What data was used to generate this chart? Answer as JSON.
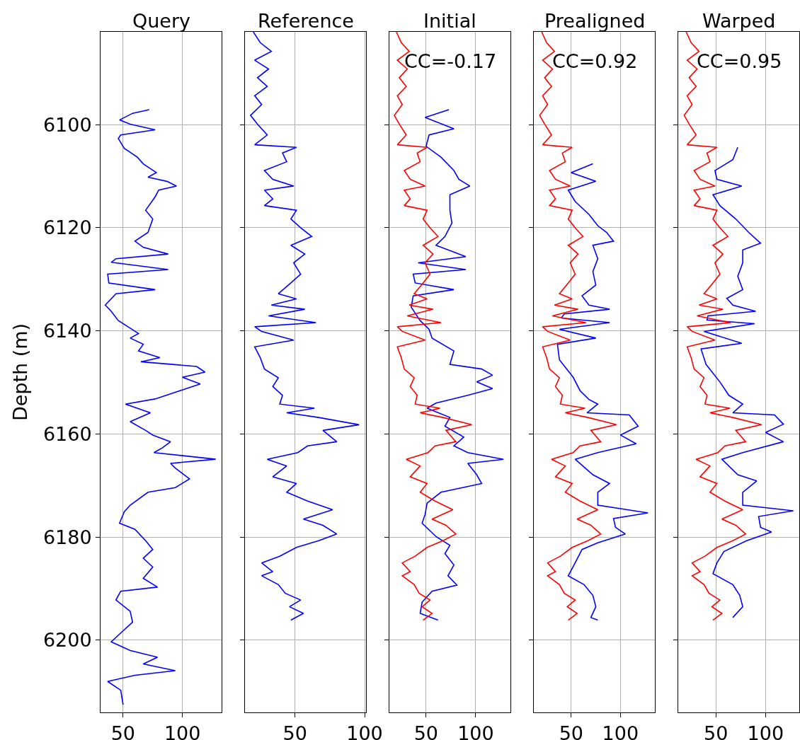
{
  "chart_data": [
    {
      "type": "line",
      "title": "Query",
      "ylabel": "Depth (m)",
      "xlim": [
        31,
        133
      ],
      "xticks": [
        50,
        100
      ],
      "ylim": [
        6214,
        6082
      ],
      "yticks": [
        6100,
        6120,
        6140,
        6160,
        6180,
        6200
      ],
      "grid": true,
      "series": [
        {
          "color": "#0000ff",
          "x": [
            72,
            58,
            47,
            56,
            77,
            48,
            46,
            51,
            62,
            67,
            78,
            71,
            87,
            95,
            80,
            77,
            69,
            75,
            71,
            60,
            67,
            88,
            44,
            40,
            88,
            37,
            38,
            77,
            44,
            35,
            40,
            46,
            63,
            56,
            67,
            63,
            81,
            65,
            112,
            119,
            100,
            115,
            98,
            77,
            52,
            73,
            56,
            69,
            75,
            90,
            83,
            76,
            128,
            90,
            94,
            106,
            94,
            71,
            56,
            51,
            47,
            60,
            69,
            75,
            67,
            75,
            67,
            79,
            48,
            44,
            56,
            58,
            48,
            40,
            56,
            79,
            67,
            94,
            60,
            37,
            48,
            50
          ],
          "values": [
            6097.1,
            6097.8,
            6099.1,
            6099.9,
            6101,
            6102,
            6102.7,
            6104.6,
            6106.3,
            6107.6,
            6109.3,
            6110.2,
            6111,
            6111.9,
            6112.7,
            6114,
            6116.6,
            6118.3,
            6120.9,
            6122.6,
            6123.8,
            6125.1,
            6126,
            6126.7,
            6128.1,
            6129,
            6130.7,
            6132,
            6132.8,
            6135,
            6136.2,
            6138,
            6140.5,
            6141.4,
            6142.6,
            6143.9,
            6145.2,
            6146,
            6146.9,
            6148,
            6149,
            6150.3,
            6151.6,
            6153.2,
            6154.2,
            6155.9,
            6157.6,
            6159.3,
            6160.2,
            6161.5,
            6162.7,
            6163.6,
            6164.9,
            6165.7,
            6166.6,
            6168.7,
            6170.4,
            6171.3,
            6173.8,
            6175.1,
            6177.3,
            6178.5,
            6180.7,
            6182.4,
            6184.1,
            6185.8,
            6188,
            6189.7,
            6190.5,
            6192.2,
            6194.4,
            6196.5,
            6198.6,
            6200.3,
            6202,
            6203.3,
            6204.6,
            6205.9,
            6206.8,
            6208,
            6209.7,
            6212.5
          ]
        }
      ]
    },
    {
      "type": "line",
      "title": "Reference",
      "xlim": [
        14,
        101
      ],
      "xticks": [
        50,
        100
      ],
      "ylim": [
        6214,
        6082
      ],
      "yticks": [
        6100,
        6120,
        6140,
        6160,
        6180,
        6200
      ],
      "grid": true,
      "tick_labels": "x",
      "series": [
        {
          "color": "#0000ff",
          "x": [
            20,
            25,
            33,
            21,
            31,
            23,
            30,
            21,
            26,
            18,
            23,
            30,
            21,
            51,
            41,
            44,
            28,
            34,
            49,
            28,
            34,
            28,
            51,
            47,
            54,
            62,
            47,
            57,
            49,
            54,
            47,
            38,
            51,
            33,
            57,
            31,
            65,
            21,
            26,
            49,
            21,
            25,
            28,
            38,
            34,
            41,
            39,
            64,
            44,
            67,
            96,
            70,
            80,
            59,
            52,
            30,
            44,
            34,
            51,
            44,
            59,
            77,
            56,
            70,
            80,
            67,
            51,
            39,
            26,
            34,
            26,
            38,
            43,
            54,
            46,
            56,
            47
          ],
          "values": [
            6082,
            6084.1,
            6085.8,
            6087.5,
            6089.2,
            6090.9,
            6092.6,
            6094.4,
            6096.1,
            6098.2,
            6099.9,
            6102,
            6103.9,
            6104.4,
            6105.5,
            6107.2,
            6108.9,
            6110.6,
            6111.9,
            6112.7,
            6114.4,
            6115.7,
            6116.6,
            6118.3,
            6120,
            6121.7,
            6123.4,
            6125.1,
            6126.8,
            6129,
            6130.7,
            6132.8,
            6133.8,
            6135,
            6135.8,
            6137.1,
            6138.4,
            6139.2,
            6140.1,
            6141.8,
            6143.1,
            6145.2,
            6147.4,
            6149.1,
            6150.8,
            6152.5,
            6154.2,
            6155,
            6155.9,
            6156.8,
            6158.2,
            6159.3,
            6161.5,
            6162.3,
            6163.6,
            6164.9,
            6166.2,
            6168.3,
            6169.6,
            6171.3,
            6173,
            6174.7,
            6176.5,
            6177.7,
            6179.4,
            6180.7,
            6182,
            6183.7,
            6185,
            6186.7,
            6187.5,
            6189.2,
            6190.9,
            6192.2,
            6193.5,
            6194.8,
            6196.1
          ]
        }
      ]
    },
    {
      "type": "line",
      "title": "Initial",
      "annotations": [
        "CC=-0.17"
      ],
      "xlim": [
        13,
        135
      ],
      "xticks": [
        50,
        100
      ],
      "ylim": [
        6214,
        6082
      ],
      "yticks": [
        6100,
        6120,
        6140,
        6160,
        6180,
        6200
      ],
      "grid": true,
      "tick_labels": "x",
      "series": [
        {
          "color": "#0000ff",
          "x": [
            73,
            49,
            78,
            53,
            50,
            65,
            78,
            83,
            94,
            74,
            74,
            76,
            69,
            60,
            90,
            42,
            90,
            37,
            39,
            78,
            37,
            35,
            44,
            53,
            56,
            78,
            74,
            106,
            117,
            101,
            117,
            92,
            60,
            51,
            74,
            69,
            88,
            78,
            92,
            128,
            92,
            101,
            106,
            65,
            51,
            49,
            46,
            60,
            74,
            69,
            78,
            72,
            81,
            56,
            46,
            44,
            62
          ],
          "values": [
            6097.1,
            6098.6,
            6100.8,
            6102,
            6104.2,
            6106.3,
            6108.9,
            6110.6,
            6111.9,
            6113.6,
            6116.6,
            6119.1,
            6121.7,
            6123.4,
            6125.6,
            6126.8,
            6128.1,
            6129,
            6130.7,
            6132,
            6133.2,
            6135.4,
            6138,
            6139.7,
            6141.4,
            6143.9,
            6146.5,
            6147.4,
            6148.6,
            6149.9,
            6151.2,
            6152.5,
            6154,
            6155,
            6156.8,
            6158.5,
            6160.6,
            6162.3,
            6163.6,
            6164.9,
            6165.7,
            6167.9,
            6169.6,
            6171.3,
            6173.4,
            6175.6,
            6177.3,
            6179.9,
            6181.6,
            6183.2,
            6185.4,
            6187.5,
            6189.3,
            6190.5,
            6192.6,
            6194.8,
            6196.1
          ]
        },
        {
          "color": "#ff0000",
          "x": [
            20,
            25,
            33,
            21,
            31,
            23,
            30,
            21,
            26,
            18,
            23,
            30,
            21,
            51,
            41,
            44,
            28,
            34,
            49,
            28,
            34,
            28,
            51,
            47,
            54,
            62,
            47,
            57,
            49,
            54,
            47,
            38,
            51,
            33,
            57,
            31,
            65,
            21,
            26,
            49,
            21,
            25,
            28,
            38,
            34,
            41,
            39,
            64,
            44,
            67,
            96,
            70,
            80,
            59,
            52,
            30,
            44,
            34,
            51,
            44,
            59,
            77,
            56,
            70,
            80,
            67,
            51,
            39,
            26,
            34,
            26,
            38,
            43,
            54,
            46,
            56,
            47
          ],
          "values": [
            6082,
            6084.1,
            6085.8,
            6087.5,
            6089.2,
            6090.9,
            6092.6,
            6094.4,
            6096.1,
            6098.2,
            6099.9,
            6102,
            6103.9,
            6104.4,
            6105.5,
            6107.2,
            6108.9,
            6110.6,
            6111.9,
            6112.7,
            6114.4,
            6115.7,
            6116.6,
            6118.3,
            6120,
            6121.7,
            6123.4,
            6125.1,
            6126.8,
            6129,
            6130.7,
            6132.8,
            6133.8,
            6135,
            6135.8,
            6137.1,
            6138.4,
            6139.2,
            6140.1,
            6141.8,
            6143.1,
            6145.2,
            6147.4,
            6149.1,
            6150.8,
            6152.5,
            6154.2,
            6155,
            6155.9,
            6156.8,
            6158.2,
            6159.3,
            6161.5,
            6162.3,
            6163.6,
            6164.9,
            6166.2,
            6168.3,
            6169.6,
            6171.3,
            6173,
            6174.7,
            6176.5,
            6177.7,
            6179.4,
            6180.7,
            6182,
            6183.7,
            6185,
            6186.7,
            6187.5,
            6189.2,
            6190.9,
            6192.2,
            6193.5,
            6194.8,
            6196.1
          ]
        }
      ]
    },
    {
      "type": "line",
      "title": "Prealigned",
      "annotations": [
        "CC=0.92"
      ],
      "xlim": [
        12,
        135
      ],
      "xticks": [
        50,
        100
      ],
      "ylim": [
        6214,
        6082
      ],
      "yticks": [
        6100,
        6120,
        6140,
        6160,
        6180,
        6200
      ],
      "grid": true,
      "tick_labels": "x",
      "series": [
        {
          "color": "#0000ff",
          "x": [
            72,
            50,
            75,
            47,
            54,
            68,
            77,
            86,
            93,
            72,
            77,
            72,
            75,
            61,
            68,
            89,
            43,
            40,
            89,
            38,
            75,
            36,
            38,
            52,
            59,
            68,
            77,
            66,
            109,
            118,
            100,
            116,
            77,
            54,
            72,
            89,
            77,
            77,
            128,
            93,
            95,
            105,
            77,
            61,
            54,
            47,
            63,
            72,
            75,
            70,
            77
          ],
          "values": [
            6107.6,
            6109.3,
            6111,
            6112.7,
            6114.9,
            6117.4,
            6119.6,
            6120.9,
            6122.6,
            6123.4,
            6126,
            6128.5,
            6131.1,
            6133.2,
            6135,
            6135.8,
            6136.7,
            6137.5,
            6138.4,
            6139.7,
            6141.4,
            6142.6,
            6145.6,
            6149,
            6151.6,
            6153.3,
            6154.2,
            6155.9,
            6156.3,
            6158.5,
            6160.2,
            6161.9,
            6163.6,
            6164.9,
            6167.9,
            6169.6,
            6171.3,
            6173.8,
            6175.3,
            6176.4,
            6178.1,
            6179.4,
            6181.1,
            6182.4,
            6185,
            6187.5,
            6189.2,
            6191.3,
            6193.5,
            6195.6,
            6196.1
          ]
        },
        {
          "color": "#ff0000",
          "x": [
            20,
            25,
            33,
            21,
            31,
            23,
            30,
            21,
            26,
            18,
            23,
            30,
            21,
            51,
            41,
            44,
            28,
            34,
            49,
            28,
            34,
            28,
            51,
            47,
            54,
            62,
            47,
            57,
            49,
            54,
            47,
            38,
            51,
            33,
            57,
            31,
            65,
            21,
            26,
            49,
            21,
            25,
            28,
            38,
            34,
            41,
            39,
            64,
            44,
            67,
            96,
            70,
            80,
            59,
            52,
            30,
            44,
            34,
            51,
            44,
            59,
            77,
            56,
            70,
            80,
            67,
            51,
            39,
            26,
            34,
            26,
            38,
            43,
            54,
            46,
            56,
            47
          ],
          "values": [
            6082,
            6084.1,
            6085.8,
            6087.5,
            6089.2,
            6090.9,
            6092.6,
            6094.4,
            6096.1,
            6098.2,
            6099.9,
            6102,
            6103.9,
            6104.4,
            6105.5,
            6107.2,
            6108.9,
            6110.6,
            6111.9,
            6112.7,
            6114.4,
            6115.7,
            6116.6,
            6118.3,
            6120,
            6121.7,
            6123.4,
            6125.1,
            6126.8,
            6129,
            6130.7,
            6132.8,
            6133.8,
            6135,
            6135.8,
            6137.1,
            6138.4,
            6139.2,
            6140.1,
            6141.8,
            6143.1,
            6145.2,
            6147.4,
            6149.1,
            6150.8,
            6152.5,
            6154.2,
            6155,
            6155.9,
            6156.8,
            6158.2,
            6159.3,
            6161.5,
            6162.3,
            6163.6,
            6164.9,
            6166.2,
            6168.3,
            6169.6,
            6171.3,
            6173,
            6174.7,
            6176.5,
            6177.7,
            6179.4,
            6180.7,
            6182,
            6183.7,
            6185,
            6186.7,
            6187.5,
            6189.2,
            6190.9,
            6192.2,
            6193.5,
            6194.8,
            6196.1
          ]
        }
      ]
    },
    {
      "type": "line",
      "title": "Warped",
      "annotations": [
        "CC=0.95"
      ],
      "xlim": [
        12,
        134
      ],
      "xticks": [
        50,
        100
      ],
      "ylim": [
        6214,
        6082
      ],
      "yticks": [
        6100,
        6120,
        6140,
        6160,
        6180,
        6200
      ],
      "grid": true,
      "tick_labels": "x",
      "series": [
        {
          "color": "#0000ff",
          "x": [
            72,
            67,
            49,
            51,
            76,
            47,
            54,
            70,
            83,
            95,
            77,
            77,
            72,
            77,
            61,
            67,
            90,
            42,
            41,
            89,
            38,
            76,
            35,
            40,
            54,
            63,
            77,
            67,
            109,
            118,
            100,
            118,
            77,
            56,
            72,
            91,
            77,
            77,
            128,
            93,
            95,
            106,
            81,
            58,
            51,
            47,
            67,
            74,
            77,
            67
          ],
          "values": [
            6104.4,
            6106.8,
            6108.9,
            6110.6,
            6111.9,
            6113.6,
            6115.7,
            6118.3,
            6120.9,
            6123,
            6124.3,
            6126.8,
            6129.4,
            6132,
            6133.7,
            6135,
            6136.2,
            6137.1,
            6137.9,
            6138.6,
            6140.1,
            6142.4,
            6143.5,
            6146.5,
            6149.9,
            6152.5,
            6154.2,
            6155.9,
            6156.3,
            6158.1,
            6159.7,
            6161.5,
            6163.6,
            6164.9,
            6167.9,
            6169.1,
            6171.3,
            6173.8,
            6174.9,
            6176,
            6178.1,
            6179,
            6180.7,
            6182.8,
            6185,
            6187.1,
            6189.2,
            6191.3,
            6193.5,
            6195.6
          ]
        },
        {
          "color": "#ff0000",
          "x": [
            20,
            25,
            33,
            21,
            31,
            23,
            30,
            21,
            26,
            18,
            23,
            30,
            21,
            51,
            41,
            44,
            28,
            34,
            49,
            28,
            34,
            28,
            51,
            47,
            54,
            62,
            47,
            57,
            49,
            54,
            47,
            38,
            51,
            33,
            57,
            31,
            65,
            21,
            26,
            49,
            21,
            25,
            28,
            38,
            34,
            41,
            39,
            64,
            44,
            67,
            96,
            70,
            80,
            59,
            52,
            30,
            44,
            34,
            51,
            44,
            59,
            77,
            56,
            70,
            80,
            67,
            51,
            39,
            26,
            34,
            26,
            38,
            43,
            54,
            46,
            56,
            47
          ],
          "values": [
            6082,
            6084.1,
            6085.8,
            6087.5,
            6089.2,
            6090.9,
            6092.6,
            6094.4,
            6096.1,
            6098.2,
            6099.9,
            6102,
            6103.9,
            6104.4,
            6105.5,
            6107.2,
            6108.9,
            6110.6,
            6111.9,
            6112.7,
            6114.4,
            6115.7,
            6116.6,
            6118.3,
            6120,
            6121.7,
            6123.4,
            6125.1,
            6126.8,
            6129,
            6130.7,
            6132.8,
            6133.8,
            6135,
            6135.8,
            6137.1,
            6138.4,
            6139.2,
            6140.1,
            6141.8,
            6143.1,
            6145.2,
            6147.4,
            6149.1,
            6150.8,
            6152.5,
            6154.2,
            6155,
            6155.9,
            6156.8,
            6158.2,
            6159.3,
            6161.5,
            6162.3,
            6163.6,
            6164.9,
            6166.2,
            6168.3,
            6169.6,
            6171.3,
            6173,
            6174.7,
            6176.5,
            6177.7,
            6179.4,
            6180.7,
            6182,
            6183.7,
            6185,
            6186.7,
            6187.5,
            6189.2,
            6190.9,
            6192.2,
            6193.5,
            6194.8,
            6196.1
          ]
        }
      ]
    }
  ]
}
